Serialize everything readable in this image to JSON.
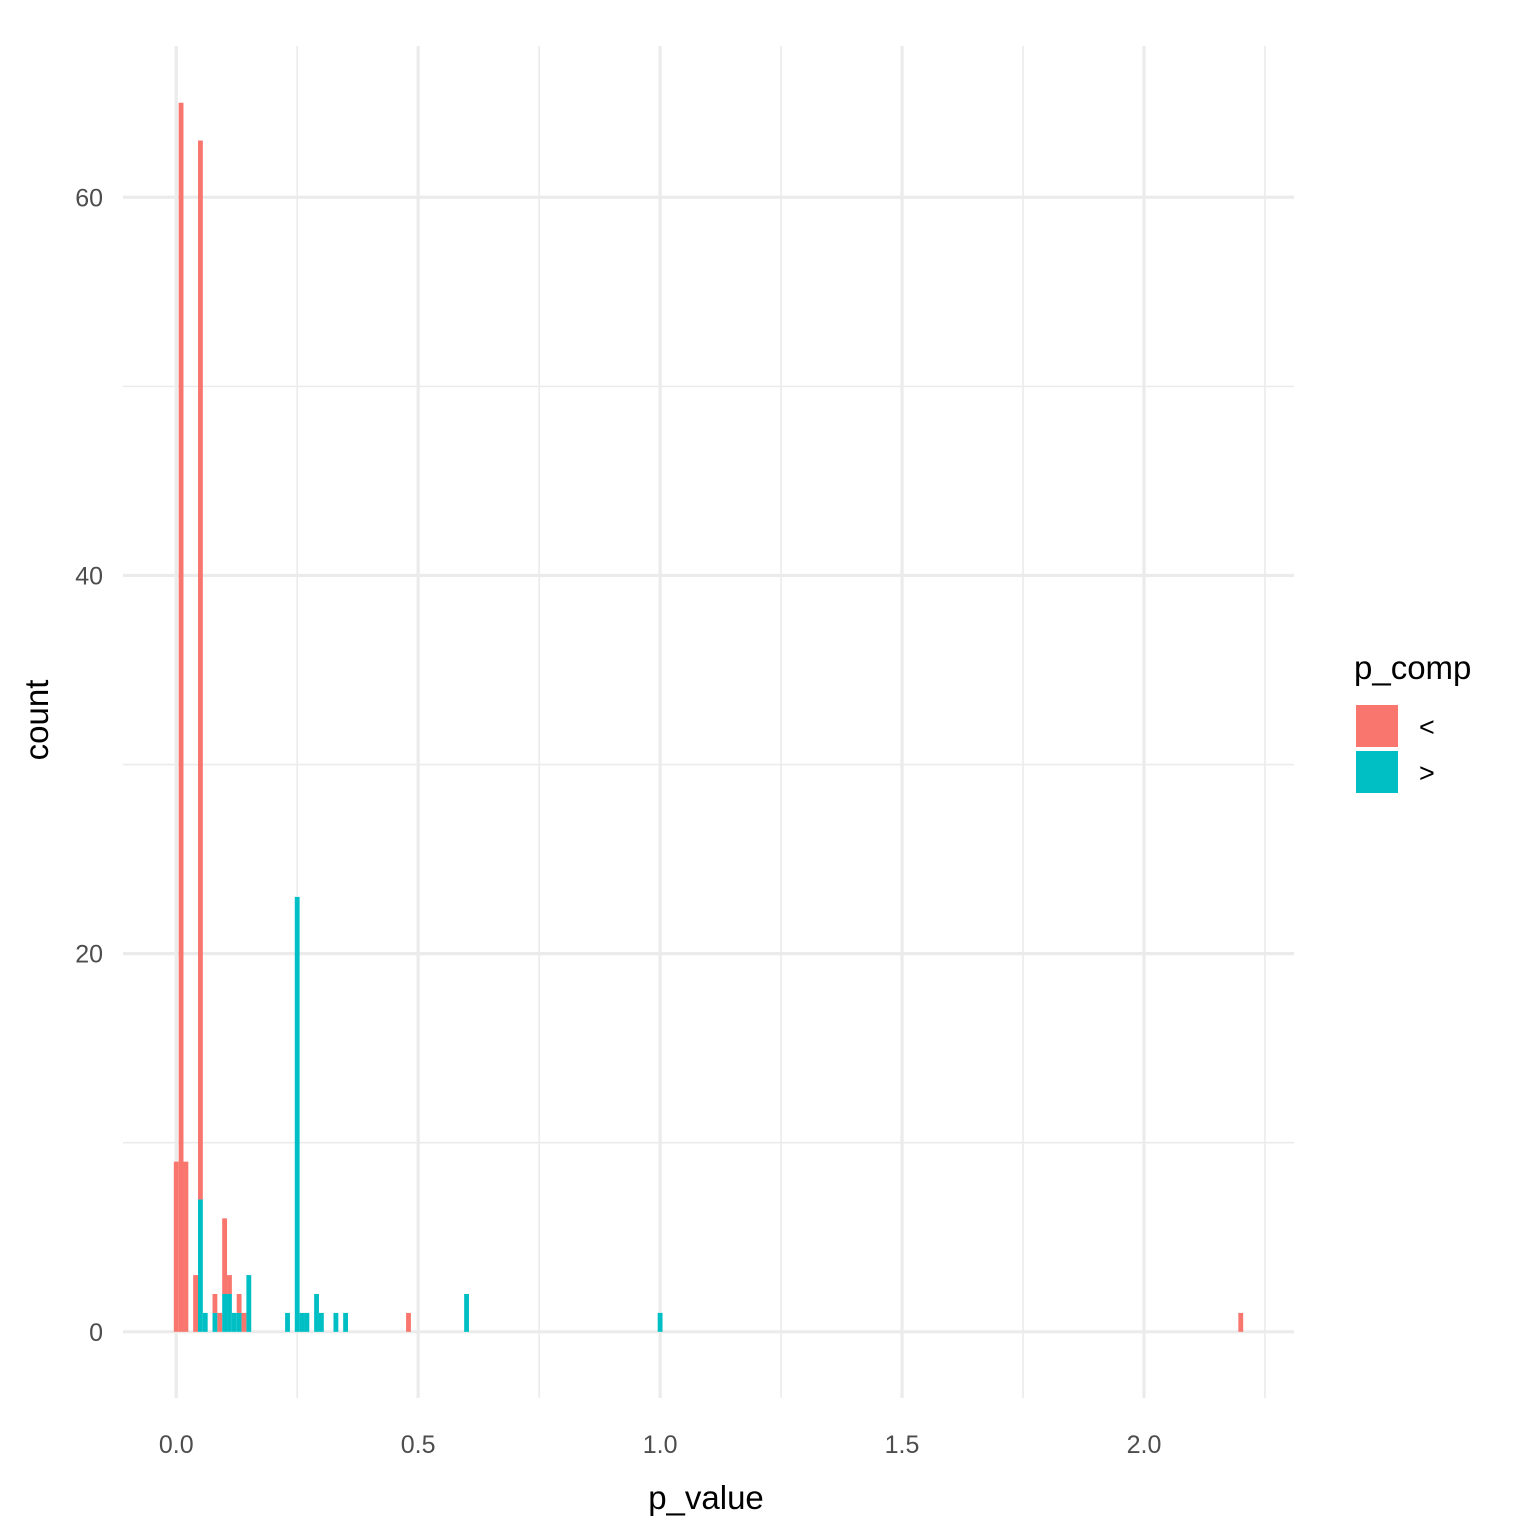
{
  "chart_data": {
    "type": "bar",
    "subtype": "stacked-histogram",
    "xlabel": "p_value",
    "ylabel": "count",
    "xlim": [
      -0.11,
      2.31
    ],
    "ylim": [
      -3.5,
      68.0
    ],
    "x_ticks": [
      0.0,
      0.5,
      1.0,
      1.5,
      2.0
    ],
    "x_tick_labels": [
      "0.0",
      "0.5",
      "1.0",
      "1.5",
      "2.0"
    ],
    "x_minor_ticks": [
      0.25,
      0.75,
      1.25,
      1.75,
      2.25
    ],
    "y_ticks": [
      0,
      20,
      40,
      60
    ],
    "y_tick_labels": [
      "0",
      "20",
      "40",
      "60"
    ],
    "y_minor_ticks": [
      10,
      30,
      50
    ],
    "grid": true,
    "bin_width": 0.01,
    "legend": {
      "title": "p_comp",
      "position": "right",
      "entries": [
        {
          "label": "<",
          "color": "#F8766D"
        },
        {
          "label": ">",
          "color": "#00BFC4"
        }
      ]
    },
    "series": [
      {
        "name": "<",
        "color": "#F8766D",
        "points": [
          [
            0.0,
            9
          ],
          [
            0.01,
            65
          ],
          [
            0.02,
            9
          ],
          [
            0.04,
            3
          ],
          [
            0.05,
            56
          ],
          [
            0.08,
            1
          ],
          [
            0.09,
            1
          ],
          [
            0.1,
            4
          ],
          [
            0.11,
            1
          ],
          [
            0.13,
            1
          ],
          [
            0.14,
            1
          ],
          [
            0.48,
            1
          ],
          [
            2.2,
            1
          ]
        ]
      },
      {
        "name": ">",
        "color": "#00BFC4",
        "points": [
          [
            0.05,
            7
          ],
          [
            0.06,
            1
          ],
          [
            0.08,
            1
          ],
          [
            0.1,
            2
          ],
          [
            0.11,
            2
          ],
          [
            0.12,
            1
          ],
          [
            0.13,
            1
          ],
          [
            0.15,
            3
          ],
          [
            0.23,
            1
          ],
          [
            0.25,
            23
          ],
          [
            0.26,
            1
          ],
          [
            0.27,
            1
          ],
          [
            0.29,
            2
          ],
          [
            0.3,
            1
          ],
          [
            0.33,
            1
          ],
          [
            0.35,
            1
          ],
          [
            0.6,
            2
          ],
          [
            1.0,
            1
          ]
        ]
      }
    ]
  }
}
